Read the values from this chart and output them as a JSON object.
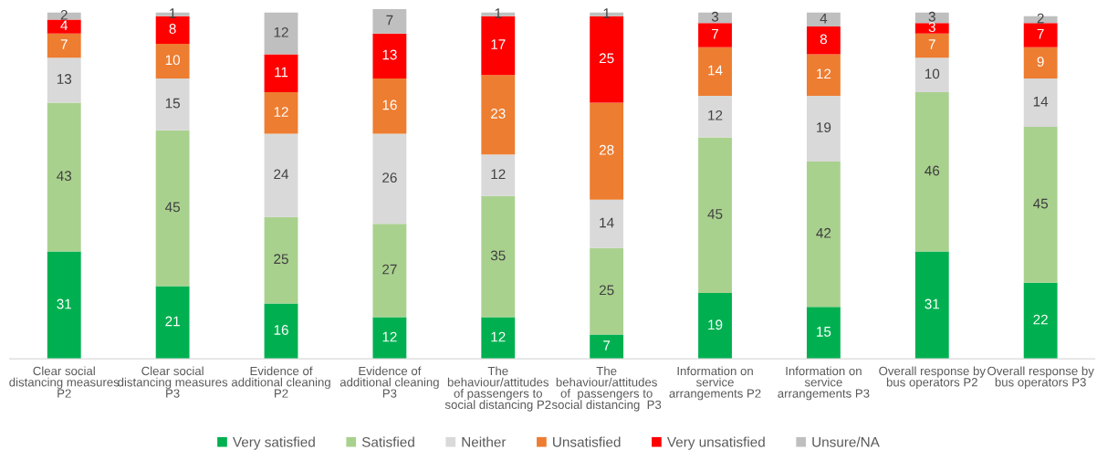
{
  "chart_data": {
    "type": "bar",
    "stacked": true,
    "data_labels": true,
    "tick_labels": "x",
    "legend": "bottom",
    "categories": [
      "Clear social\ndistancing measures\nP2",
      "Clear social\ndistancing measures\nP3",
      "Evidence of\nadditional cleaning\nP2",
      "Evidence of\nadditional cleaning\nP3",
      "The\nbehaviour/attitudes\nof passengers to\nsocial distancing P2",
      "The\nbehaviour/attitudes\nof  passengers to\nsocial distancing  P3",
      "Information on\nservice\narrangements P2",
      "Information on\nservice\narrangements P3",
      "Overall response by\nbus operators P2",
      "Overall response by\nbus operators P3"
    ],
    "series": [
      {
        "name": "Very satisfied",
        "color": "#00b050",
        "values": [
          31,
          21,
          16,
          12,
          12,
          7,
          19,
          15,
          31,
          22
        ]
      },
      {
        "name": "Satisfied",
        "color": "#a9d18e",
        "values": [
          43,
          45,
          25,
          27,
          35,
          25,
          45,
          42,
          46,
          45
        ]
      },
      {
        "name": "Neither",
        "color": "#d9d9d9",
        "values": [
          13,
          15,
          24,
          26,
          12,
          14,
          12,
          19,
          10,
          14
        ]
      },
      {
        "name": "Unsatisfied",
        "color": "#ed7d31",
        "values": [
          7,
          10,
          12,
          16,
          23,
          28,
          14,
          12,
          7,
          9
        ]
      },
      {
        "name": "Very unsatisfied",
        "color": "#ff0000",
        "values": [
          4,
          8,
          11,
          13,
          17,
          25,
          7,
          8,
          3,
          7
        ]
      },
      {
        "name": "Unsure/NA",
        "color": "#bfbfbf",
        "values": [
          2,
          1,
          12,
          7,
          1,
          1,
          3,
          4,
          3,
          2
        ]
      }
    ]
  }
}
